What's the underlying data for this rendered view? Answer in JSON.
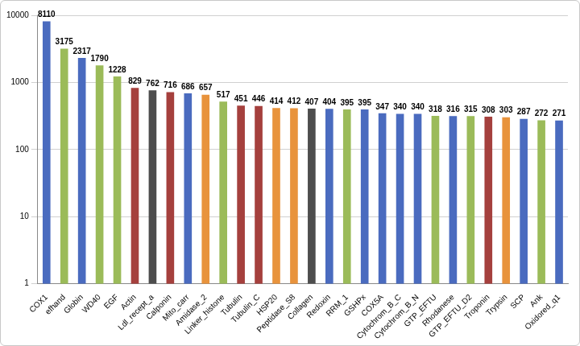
{
  "chart_data": {
    "type": "bar",
    "categories": [
      "COX1",
      "efhand",
      "Globin",
      "WD40",
      "EGF",
      "Actin",
      "Ldl_recept_a",
      "Calponin",
      "Mito_carr",
      "Amidase_2",
      "Linker_histone",
      "Tubulin",
      "Tubulin_C",
      "HSP20",
      "Peptidase_S8",
      "Collagen",
      "Redoxin",
      "RRM_1",
      "GSHPx",
      "COX5A",
      "Cytochrom_B_C",
      "Cytochrom_B_N",
      "GTP_EFTU",
      "Rhodanese",
      "GTP_EFTU_D2",
      "Troponin",
      "Trypsin",
      "SCP",
      "Ank",
      "Oxidored_q1"
    ],
    "values": [
      8110,
      3175,
      2317,
      1790,
      1228,
      829,
      762,
      716,
      686,
      657,
      517,
      451,
      446,
      414,
      412,
      407,
      404,
      395,
      395,
      347,
      340,
      340,
      318,
      316,
      315,
      308,
      303,
      287,
      272,
      271
    ],
    "colors": [
      "#4a6bbf",
      "#9bbb59",
      "#4a6bbf",
      "#9bbb59",
      "#9bbb59",
      "#a5403d",
      "#4d4d4d",
      "#a5403d",
      "#4a6bbf",
      "#e8933c",
      "#9bbb59",
      "#a5403d",
      "#a5403d",
      "#e8933c",
      "#e8933c",
      "#4d4d4d",
      "#4a6bbf",
      "#9bbb59",
      "#4a6bbf",
      "#4a6bbf",
      "#4a6bbf",
      "#4a6bbf",
      "#9bbb59",
      "#4a6bbf",
      "#9bbb59",
      "#a5403d",
      "#e8933c",
      "#4a6bbf",
      "#9bbb59",
      "#4a6bbf"
    ],
    "ylim": [
      1,
      10000
    ],
    "yticks": [
      1,
      10,
      100,
      1000,
      10000
    ],
    "log": "y",
    "grid": true,
    "data_labels": true
  }
}
